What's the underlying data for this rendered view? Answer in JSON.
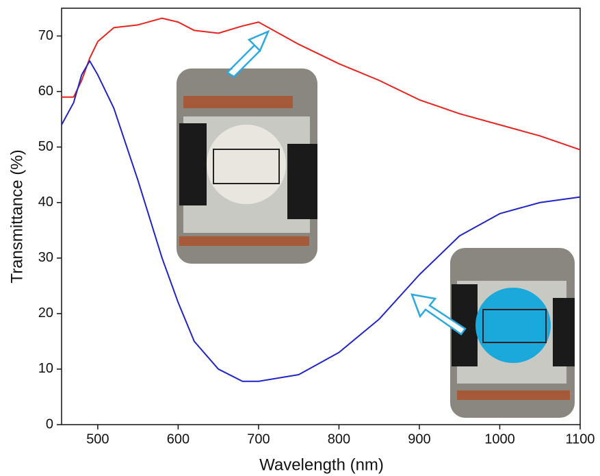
{
  "chart_data": {
    "type": "line",
    "xlabel": "Wavelength (nm)",
    "ylabel": "Transmittance (%)",
    "x": [
      455,
      470,
      480,
      490,
      500,
      520,
      550,
      580,
      600,
      620,
      650,
      680,
      700,
      750,
      800,
      850,
      900,
      950,
      1000,
      1050,
      1100
    ],
    "series": [
      {
        "color": "#e8231e",
        "values": [
          59,
          59,
          62,
          66,
          69,
          71.5,
          72,
          73.2,
          72.5,
          71,
          70.5,
          71.8,
          72.5,
          68.5,
          65,
          62,
          58.5,
          56,
          54,
          52,
          49.5
        ]
      },
      {
        "color": "#1f23c8",
        "values": [
          54,
          58,
          63,
          65.5,
          63,
          57,
          44,
          30,
          22,
          15,
          10,
          7.8,
          7.8,
          9,
          13,
          19,
          27,
          34,
          38,
          40,
          41
        ]
      }
    ],
    "xlim": [
      455,
      1100
    ],
    "ylim": [
      0,
      75
    ],
    "xticks": [
      500,
      600,
      700,
      800,
      900,
      1000,
      1100
    ],
    "yticks": [
      0,
      10,
      20,
      30,
      40,
      50,
      60,
      70
    ]
  }
}
